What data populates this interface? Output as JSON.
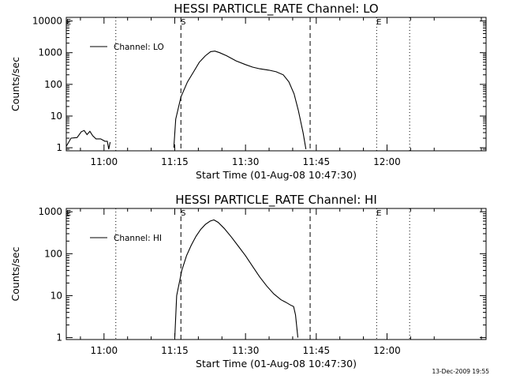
{
  "chart_data": [
    {
      "type": "line",
      "title": "HESSI PARTICLE_RATE Channel: LO",
      "xlabel": "Start Time (01-Aug-08 10:47:30)",
      "ylabel": "Counts/sec",
      "y_scale": "log",
      "ylim": [
        0.8,
        13000
      ],
      "xlim": [
        "10:52",
        "12:21"
      ],
      "x_ticks": [
        "11:00",
        "11:15",
        "11:30",
        "11:45",
        "12:00"
      ],
      "y_ticks": [
        "1",
        "10",
        "100",
        "1000",
        "10000"
      ],
      "legend": {
        "placement": "top-left",
        "entries": [
          "Channel: LO"
        ]
      },
      "grid": false,
      "vertical_markers": [
        {
          "time": "11:02.5",
          "style": "dotted",
          "label": ""
        },
        {
          "time": "11:16.3",
          "style": "dashed",
          "label": "S"
        },
        {
          "time": "11:43.7",
          "style": "dashed",
          "label": ""
        },
        {
          "time": "11:57.8",
          "style": "dotted",
          "label": "E"
        },
        {
          "time": "12:04.8",
          "style": "dotted",
          "label": ""
        }
      ],
      "series": [
        {
          "name": "Channel: LO",
          "segments": [
            {
              "x": [
                "10:52.0",
                "10:53.0",
                "10:54.3",
                "10:55.2",
                "10:55.8",
                "10:56.4",
                "10:57.0",
                "10:57.6",
                "10:58.3",
                "10:59.3",
                "11:00.2",
                "11:00.7",
                "11:01.0",
                "11:01.3"
              ],
              "y": [
                1.1,
                2.0,
                2.1,
                3.2,
                3.5,
                2.6,
                3.3,
                2.4,
                1.9,
                1.9,
                1.6,
                1.6,
                0.9,
                1.5
              ]
            },
            {
              "x": [
                "11:14.8",
                "11:15.2",
                "11:16.3",
                "11:17.7",
                "11:19.0",
                "11:20.2",
                "11:21.5",
                "11:22.6",
                "11:23.5",
                "11:24.5",
                "11:26.0",
                "11:28.0",
                "11:30.0",
                "11:31.5",
                "11:33.0",
                "11:35.0",
                "11:36.5",
                "11:38.0",
                "11:39.2",
                "11:40.3",
                "11:41.2",
                "11:42.2",
                "11:42.8"
              ],
              "y": [
                1,
                8,
                40,
                120,
                250,
                500,
                800,
                1080,
                1120,
                1000,
                800,
                550,
                420,
                350,
                310,
                280,
                250,
                200,
                120,
                50,
                15,
                3,
                0.9
              ]
            }
          ]
        }
      ]
    },
    {
      "type": "line",
      "title": "HESSI PARTICLE_RATE Channel: HI",
      "xlabel": "Start Time (01-Aug-08 10:47:30)",
      "ylabel": "Counts/sec",
      "y_scale": "log",
      "ylim": [
        0.9,
        1200
      ],
      "xlim": [
        "10:52",
        "12:21"
      ],
      "x_ticks": [
        "11:00",
        "11:15",
        "11:30",
        "11:45",
        "12:00"
      ],
      "y_ticks": [
        "1",
        "10",
        "100",
        "1000"
      ],
      "legend": {
        "placement": "top-left",
        "entries": [
          "Channel: HI"
        ]
      },
      "grid": false,
      "vertical_markers": [
        {
          "time": "11:02.5",
          "style": "dotted",
          "label": ""
        },
        {
          "time": "11:16.3",
          "style": "dashed",
          "label": "S"
        },
        {
          "time": "11:43.7",
          "style": "dashed",
          "label": ""
        },
        {
          "time": "11:57.8",
          "style": "dotted",
          "label": "E"
        },
        {
          "time": "12:04.8",
          "style": "dotted",
          "label": ""
        }
      ],
      "series": [
        {
          "name": "Channel: HI",
          "segments": [
            {
              "x": [
                "11:15.0",
                "11:15.4",
                "11:16.5",
                "11:17.5",
                "11:18.5",
                "11:19.5",
                "11:20.5",
                "11:21.5",
                "11:22.5",
                "11:23.3",
                "11:24.2",
                "11:25.5",
                "11:27.0",
                "11:28.5",
                "11:30.0",
                "11:31.5",
                "11:33.0",
                "11:34.5",
                "11:36.0",
                "11:37.5",
                "11:38.5",
                "11:39.5",
                "11:40.2",
                "11:40.6",
                "11:41.1"
              ],
              "y": [
                1,
                10,
                40,
                90,
                160,
                260,
                380,
                500,
                600,
                640,
                560,
                400,
                250,
                150,
                90,
                50,
                28,
                17,
                11,
                8,
                7,
                6,
                5.5,
                3.5,
                1
              ]
            }
          ]
        }
      ]
    }
  ],
  "footer": {
    "timestamp": "13-Dec-2009 19:55"
  }
}
